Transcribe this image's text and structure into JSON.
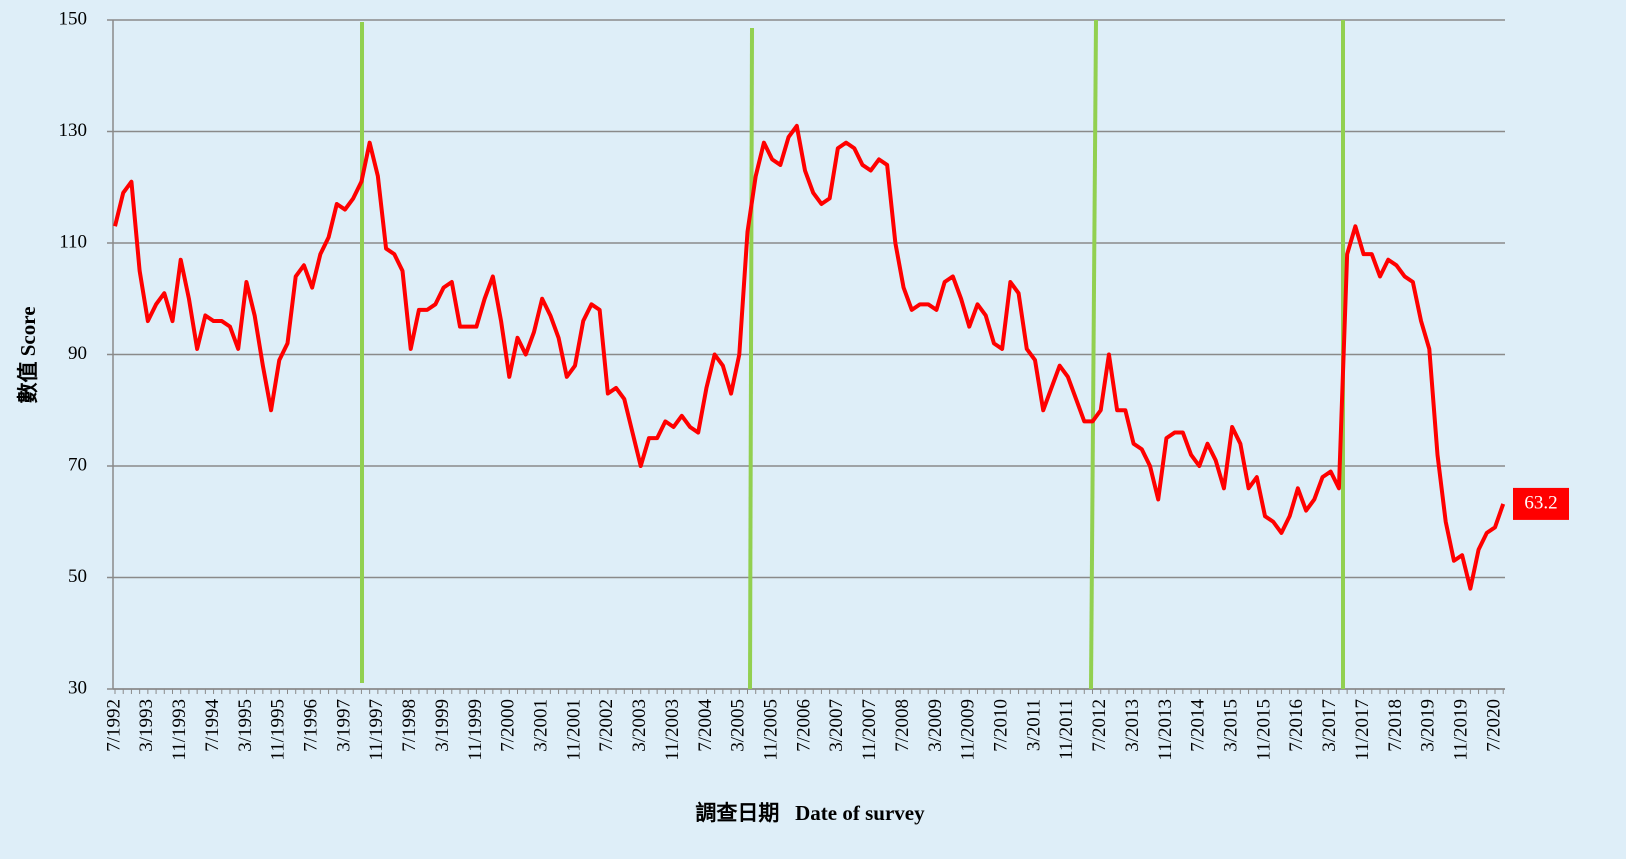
{
  "chart_data": {
    "type": "line",
    "x_label": "調查日期   Date of survey",
    "y_label": "數值 Score",
    "color": "#ff0000",
    "ylim": [
      30,
      150
    ],
    "yticks": [
      30,
      50,
      70,
      90,
      110,
      130,
      150
    ],
    "grid": true,
    "categories": [
      "7/1992",
      null,
      null,
      null,
      "3/1993",
      null,
      null,
      null,
      "11/1993",
      null,
      null,
      null,
      "7/1994",
      null,
      null,
      null,
      "3/1995",
      null,
      null,
      null,
      "11/1995",
      null,
      null,
      null,
      "7/1996",
      null,
      null,
      null,
      "3/1997",
      null,
      null,
      null,
      "11/1997",
      null,
      null,
      null,
      "7/1998",
      null,
      null,
      null,
      "3/1999",
      null,
      null,
      null,
      "11/1999",
      null,
      null,
      null,
      "7/2000",
      null,
      null,
      null,
      "3/2001",
      null,
      null,
      null,
      "11/2001",
      null,
      null,
      null,
      "7/2002",
      null,
      null,
      null,
      "3/2003",
      null,
      null,
      null,
      "11/2003",
      null,
      null,
      null,
      "7/2004",
      null,
      null,
      null,
      "3/2005",
      null,
      null,
      null,
      "11/2005",
      null,
      null,
      null,
      "7/2006",
      null,
      null,
      null,
      "3/2007",
      null,
      null,
      null,
      "11/2007",
      null,
      null,
      null,
      "7/2008",
      null,
      null,
      null,
      "3/2009",
      null,
      null,
      null,
      "11/2009",
      null,
      null,
      null,
      "7/2010",
      null,
      null,
      null,
      "3/2011",
      null,
      null,
      null,
      "11/2011",
      null,
      null,
      null,
      "7/2012",
      null,
      null,
      null,
      "3/2013",
      null,
      null,
      null,
      "11/2013",
      null,
      null,
      null,
      "7/2014",
      null,
      null,
      null,
      "3/2015",
      null,
      null,
      null,
      "11/2015",
      null,
      null,
      null,
      "7/2016",
      null,
      null,
      null,
      "3/2017",
      null,
      null,
      null,
      "11/2017",
      null,
      null,
      null,
      "7/2018",
      null,
      null,
      null,
      "3/2019",
      null,
      null,
      null,
      "11/2019",
      null,
      null,
      null,
      "7/2020",
      null
    ],
    "values": [
      113,
      119,
      121,
      105,
      96,
      99,
      101,
      96,
      107,
      100,
      91,
      97,
      96,
      96,
      95,
      91,
      103,
      97,
      88,
      80,
      89,
      92,
      104,
      106,
      102,
      108,
      111,
      117,
      116,
      118,
      121,
      128,
      122,
      109,
      108,
      105,
      91,
      98,
      98,
      99,
      102,
      103,
      95,
      95,
      95,
      100,
      104,
      96,
      86,
      93,
      90,
      94,
      100,
      97,
      93,
      86,
      88,
      96,
      99,
      98,
      83,
      84,
      82,
      76,
      70,
      75,
      75,
      78,
      77,
      79,
      77,
      76,
      84,
      90,
      88,
      83,
      90,
      112,
      122,
      128,
      125,
      124,
      129,
      131,
      123,
      119,
      117,
      118,
      127,
      128,
      127,
      124,
      123,
      125,
      124,
      110,
      102,
      98,
      99,
      99,
      98,
      103,
      104,
      100,
      95,
      99,
      97,
      92,
      91,
      103,
      101,
      91,
      89,
      80,
      84,
      88,
      86,
      82,
      78,
      78,
      80,
      90,
      80,
      80,
      74,
      73,
      70,
      64,
      75,
      76,
      76,
      72,
      70,
      74,
      71,
      66,
      77,
      74,
      66,
      68,
      61,
      60,
      58,
      61,
      66,
      62,
      64,
      68,
      69,
      66,
      108,
      113,
      108,
      108,
      104,
      107,
      106,
      104,
      103,
      96,
      91,
      72,
      60,
      53,
      54,
      48,
      55,
      58,
      59,
      63.2
    ]
  }
}
